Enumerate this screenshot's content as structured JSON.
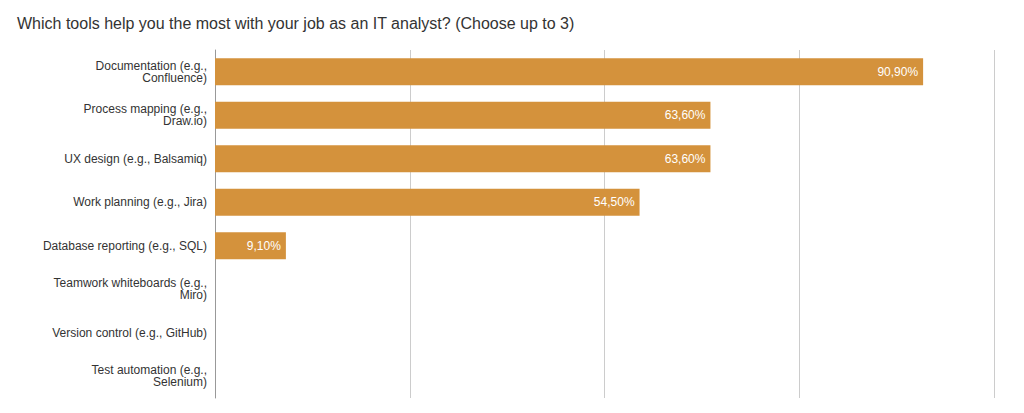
{
  "chart_data": {
    "type": "bar",
    "orientation": "horizontal",
    "title": "Which tools help you the most with your job as an IT analyst? (Choose up to 3)",
    "categories": [
      "Test automation (e.g.,\nSelenium)",
      "Version control (e.g., GitHub)",
      "Teamwork whiteboards (e.g.,\nMiro)",
      "Database reporting (e.g., SQL)",
      "Work planning (e.g., Jira)",
      "UX design (e.g., Balsamiq)",
      "Process mapping (e.g.,\nDraw.io)",
      "Documentation (e.g.,\nConfluence)"
    ],
    "values": [
      0,
      0,
      0,
      9.1,
      54.5,
      63.6,
      63.6,
      90.9
    ],
    "value_labels": [
      null,
      null,
      null,
      "9,10%",
      "54,50%",
      "63,60%",
      "63,60%",
      "90,90%"
    ],
    "data_labels": true,
    "color": "#D4923C",
    "xlim": [
      0,
      100
    ],
    "xticks": [
      0,
      25,
      50,
      75,
      100
    ],
    "grid": true,
    "tick_labels": "y"
  }
}
